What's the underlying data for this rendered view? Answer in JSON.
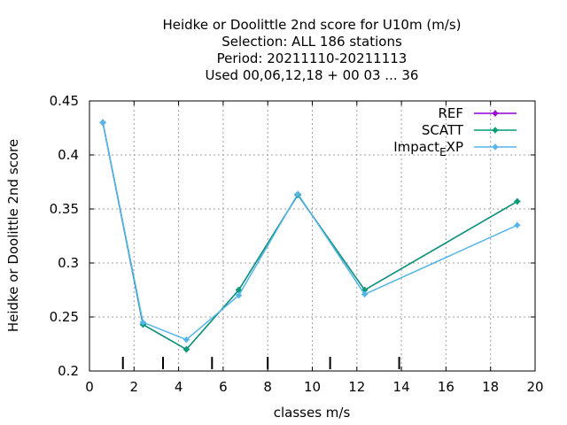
{
  "chart_data": {
    "type": "line",
    "title_lines": [
      "Heidke or Doolittle 2nd score  for U10m (m/s)",
      "Selection: ALL    186 stations",
      "Period: 20211110-20211113",
      "Used  00,06,12,18 + 00 03 ... 36"
    ],
    "xlabel": "classes m/s",
    "ylabel": "Heidke or Doolittle 2nd score",
    "xlim": [
      0,
      20
    ],
    "ylim": [
      0.2,
      0.45
    ],
    "xticks": [
      0,
      2,
      4,
      6,
      8,
      10,
      12,
      14,
      16,
      18,
      20
    ],
    "xtick_labels": [
      "0",
      "2",
      "4",
      "6",
      "8",
      "10",
      "12",
      "14",
      "16",
      "18",
      "20"
    ],
    "yticks": [
      0.2,
      0.25,
      0.3,
      0.35,
      0.4,
      0.45
    ],
    "ytick_labels": [
      "0.2",
      "0.25",
      "0.3",
      "0.35",
      "0.4",
      "0.45"
    ],
    "class_boundaries": [
      1.5,
      3.3,
      5.5,
      8.0,
      10.8,
      13.9
    ],
    "grid": true,
    "legend_position": "top-right",
    "legend_entries": [
      {
        "label": "REF",
        "sub": "",
        "rest": ""
      },
      {
        "label": "SCATT",
        "sub": "",
        "rest": ""
      },
      {
        "label": "Impact",
        "sub": "E",
        "rest": "XP"
      }
    ],
    "series": [
      {
        "name": "REF",
        "color": "#9400d3",
        "x": [
          0.6,
          2.4,
          4.35,
          6.7,
          9.35,
          12.35,
          19.2
        ],
        "y": [
          0.43,
          0.243,
          0.22,
          0.275,
          0.363,
          0.275,
          0.357
        ]
      },
      {
        "name": "SCATT",
        "color": "#009e73",
        "x": [
          0.6,
          2.4,
          4.35,
          6.7,
          9.35,
          12.35,
          19.2
        ],
        "y": [
          0.43,
          0.243,
          0.22,
          0.275,
          0.363,
          0.275,
          0.357
        ]
      },
      {
        "name": "ImpactEXP",
        "color": "#56b4e9",
        "x": [
          0.6,
          2.4,
          4.35,
          6.7,
          9.35,
          12.35,
          19.2
        ],
        "y": [
          0.43,
          0.245,
          0.229,
          0.27,
          0.364,
          0.271,
          0.335
        ]
      }
    ]
  }
}
